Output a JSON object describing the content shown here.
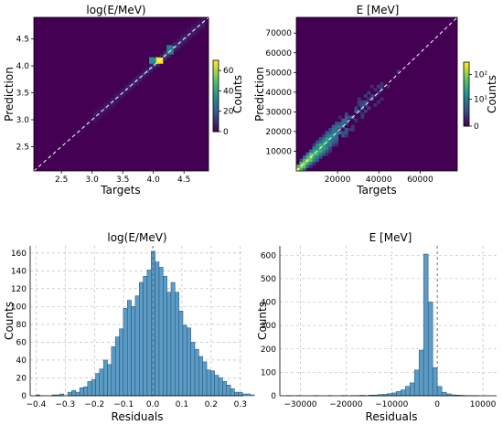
{
  "chart_data": [
    {
      "id": "hist2d-log",
      "type": "heatmap",
      "title": "log(E/MeV)",
      "xlabel": "Targets",
      "ylabel": "Prediction",
      "xlim": [
        2.05,
        4.9
      ],
      "ylim": [
        2.05,
        4.9
      ],
      "xticks": [
        2.5,
        3.0,
        3.5,
        4.0,
        4.5
      ],
      "yticks": [
        2.5,
        3.0,
        3.5,
        4.0,
        4.5
      ],
      "colorbar": {
        "label": "Counts",
        "scale": "linear",
        "ticks": [
          0,
          20,
          40,
          60
        ],
        "max": 70
      },
      "colormap": [
        "#440154",
        "#3b528b",
        "#21918c",
        "#5ec962",
        "#fde725"
      ],
      "diagonal": true,
      "x_range": [
        2.05,
        4.9
      ],
      "bins": 50,
      "distribution": {
        "lower": [
          3.0,
          4.75
        ],
        "spread_min": 0.03,
        "spread_max": 0.09,
        "hotspots": [
          [
            4.1,
            4.12,
            70
          ],
          [
            4.0,
            4.08,
            35
          ],
          [
            4.25,
            4.3,
            30
          ]
        ]
      }
    },
    {
      "id": "hist2d-lin",
      "type": "heatmap",
      "title": "E [MeV]",
      "xlabel": "Targets",
      "ylabel": "Prediction",
      "xlim": [
        0,
        78000
      ],
      "ylim": [
        0,
        78000
      ],
      "xticks": [
        20000,
        40000,
        60000
      ],
      "xtick_labels": [
        "20000",
        "40000",
        "60000"
      ],
      "yticks": [
        10000,
        20000,
        30000,
        40000,
        50000,
        60000,
        70000
      ],
      "ytick_labels": [
        "10000",
        "20000",
        "30000",
        "40000",
        "50000",
        "60000",
        "70000"
      ],
      "colorbar": {
        "label": "Counts",
        "scale": "log",
        "ticks": [
          0,
          10,
          100
        ],
        "tick_labels": [
          "0",
          "10¹",
          "10²"
        ],
        "max": 300
      },
      "colormap": [
        "#440154",
        "#3b528b",
        "#21918c",
        "#5ec962",
        "#fde725"
      ],
      "diagonal": true,
      "bins": 50
    },
    {
      "id": "hist-log-res",
      "type": "bar",
      "title": "log(E/MeV)",
      "xlabel": "Residuals",
      "ylabel": "Counts",
      "xlim": [
        -0.42,
        0.31
      ],
      "ylim": [
        0,
        168
      ],
      "xticks": [
        -0.4,
        -0.3,
        -0.2,
        -0.1,
        0.0,
        0.1,
        0.2,
        0.3
      ],
      "xtick_labels": [
        "−0.4",
        "−0.3",
        "−0.2",
        "−0.1",
        "0.0",
        "0.1",
        "0.2",
        "0.3"
      ],
      "yticks": [
        0,
        20,
        40,
        60,
        80,
        100,
        120,
        140,
        160
      ],
      "grid": true,
      "reference_x": 0,
      "bin_start": -0.4,
      "bin_width": 0.0136,
      "values": [
        1,
        0,
        0,
        0,
        1,
        1,
        2,
        0,
        4,
        6,
        4,
        9,
        10,
        16,
        18,
        25,
        30,
        40,
        35,
        55,
        66,
        75,
        98,
        107,
        100,
        112,
        127,
        134,
        141,
        162,
        150,
        144,
        134,
        116,
        127,
        116,
        95,
        79,
        76,
        60,
        52,
        44,
        38,
        29,
        28,
        23,
        20,
        16,
        12,
        8,
        4,
        4,
        2,
        2,
        1,
        0
      ]
    },
    {
      "id": "hist-lin-res",
      "type": "bar",
      "title": "E [MeV]",
      "xlabel": "Residuals",
      "ylabel": "Counts",
      "xlim": [
        -34500,
        13000
      ],
      "ylim": [
        0,
        640
      ],
      "xticks": [
        -30000,
        -20000,
        -10000,
        0,
        10000
      ],
      "xtick_labels": [
        "−30000",
        "−20000",
        "−10000",
        "0",
        "10000"
      ],
      "yticks": [
        0,
        100,
        200,
        300,
        400,
        500,
        600
      ],
      "grid": true,
      "reference_x": 0,
      "bin_start": -33000,
      "bin_width": 1000,
      "values": [
        1,
        0,
        1,
        0,
        0,
        0,
        1,
        0,
        0,
        1,
        0,
        0,
        1,
        0,
        1,
        1,
        2,
        1,
        3,
        3,
        5,
        6,
        9,
        12,
        18,
        25,
        40,
        55,
        110,
        195,
        605,
        400,
        120,
        40,
        15,
        8,
        4,
        3,
        2,
        1,
        1,
        1,
        0,
        0,
        0,
        0
      ]
    }
  ]
}
